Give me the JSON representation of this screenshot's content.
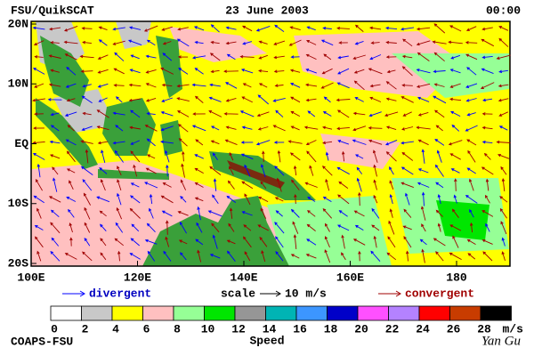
{
  "header": {
    "left": "FSU/QuikSCAT",
    "center": "23 June 2003",
    "right": "00:00"
  },
  "map": {
    "lat_labels": [
      "20N",
      "10N",
      "EQ",
      "10S",
      "20S"
    ],
    "lon_labels": [
      "100E",
      "120E",
      "140E",
      "160E",
      "180"
    ]
  },
  "legend": {
    "divergent": "divergent",
    "scale": "scale",
    "scale_value": "10 m/s",
    "convergent": "convergent",
    "divergent_color": "#0000ff",
    "convergent_color": "#a00000"
  },
  "colorbar": {
    "colors": [
      "#ffffff",
      "#c8c8c8",
      "#ffff00",
      "#ffc0c0",
      "#96ff96",
      "#00e600",
      "#969696",
      "#00b4b4",
      "#3c96ff",
      "#0000c8",
      "#ff50ff",
      "#b482ff",
      "#ff0000",
      "#c83c00",
      "#000000"
    ],
    "ticks": [
      "0",
      "2",
      "4",
      "6",
      "8",
      "10",
      "12",
      "14",
      "16",
      "18",
      "20",
      "22",
      "24",
      "26",
      "28"
    ],
    "unit": "m/s",
    "title": "Speed"
  },
  "footer": {
    "left": "COAPS-FSU",
    "right": "Yan Gu"
  }
}
